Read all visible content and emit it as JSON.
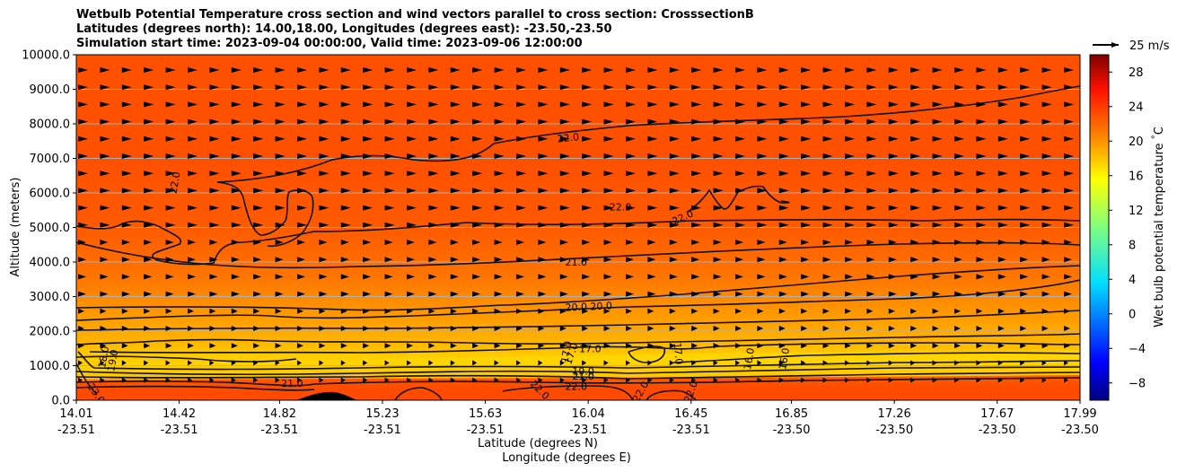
{
  "chart_data": {
    "type": "contour-cross-section",
    "title": [
      "Wetbulb Potential Temperature cross section and wind vectors parallel to cross section: CrosssectionB",
      "Latitudes (degrees north): 14.00,18.00, Longitudes (degrees east): -23.50,-23.50",
      "Simulation start time: 2023-09-04 00:00:00, Valid time: 2023-09-06 12:00:00"
    ],
    "xlabel": "Latitude (degrees N)",
    "xlabel2": "Longitude (degrees E)",
    "ylabel": "Altitude (meters)",
    "ylim": [
      0,
      10000
    ],
    "y_ticks": [
      "0.0",
      "1000.0",
      "2000.0",
      "3000.0",
      "4000.0",
      "5000.0",
      "6000.0",
      "7000.0",
      "8000.0",
      "9000.0",
      "10000.0"
    ],
    "x_ticks": [
      {
        "lat": "14.01",
        "lon": "-23.51"
      },
      {
        "lat": "14.42",
        "lon": "-23.51"
      },
      {
        "lat": "14.82",
        "lon": "-23.51"
      },
      {
        "lat": "15.23",
        "lon": "-23.51"
      },
      {
        "lat": "15.63",
        "lon": "-23.51"
      },
      {
        "lat": "16.04",
        "lon": "-23.51"
      },
      {
        "lat": "16.45",
        "lon": "-23.51"
      },
      {
        "lat": "16.85",
        "lon": "-23.50"
      },
      {
        "lat": "17.26",
        "lon": "-23.50"
      },
      {
        "lat": "17.67",
        "lon": "-23.50"
      },
      {
        "lat": "17.99",
        "lon": "-23.50"
      }
    ],
    "x_tick_fractions": [
      0,
      0.1025,
      0.2025,
      0.305,
      0.4075,
      0.51,
      0.6125,
      0.7125,
      0.815,
      0.9175,
      1.0
    ],
    "colorbar": {
      "label": "Wet bulb potential temperature $^\\circ$C",
      "range": [
        -10,
        30
      ],
      "tick_values": [
        -8,
        -4,
        0,
        4,
        8,
        12,
        16,
        20,
        24,
        28
      ],
      "tick_labels": [
        "−8",
        "−4",
        "0",
        "4",
        "8",
        "12",
        "16",
        "20",
        "24",
        "28"
      ],
      "colormap": [
        "#00007f",
        "#0000ff",
        "#007fff",
        "#00ffff",
        "#7fff7f",
        "#ffff00",
        "#ff7f00",
        "#ff0000",
        "#7f0000"
      ]
    },
    "wind_key_label": "25 m/s",
    "contour_labels": [
      {
        "text": "22.0",
        "x_frac": 0.098,
        "alt": 6300,
        "rot": -80
      },
      {
        "text": "22.0",
        "x_frac": 0.49,
        "alt": 7600,
        "rot": -6
      },
      {
        "text": "22.0",
        "x_frac": 0.542,
        "alt": 5600,
        "rot": 0
      },
      {
        "text": "22.0",
        "x_frac": 0.604,
        "alt": 5300,
        "rot": -25
      },
      {
        "text": "21.0",
        "x_frac": 0.498,
        "alt": 4000,
        "rot": 0
      },
      {
        "text": "20.0",
        "x_frac": 0.498,
        "alt": 2700,
        "rot": -3
      },
      {
        "text": "20.0",
        "x_frac": 0.523,
        "alt": 2730,
        "rot": -3
      },
      {
        "text": "17.0",
        "x_frac": 0.512,
        "alt": 1500,
        "rot": 0
      },
      {
        "text": "17.0",
        "x_frac": 0.488,
        "alt": 1400,
        "rot": -80
      },
      {
        "text": "17.0",
        "x_frac": 0.6,
        "alt": 1350,
        "rot": 85
      },
      {
        "text": "17.0",
        "x_frac": 0.493,
        "alt": 1350,
        "rot": -70
      },
      {
        "text": "19.0",
        "x_frac": 0.505,
        "alt": 850,
        "rot": 0
      },
      {
        "text": "21.0",
        "x_frac": 0.505,
        "alt": 700,
        "rot": 0
      },
      {
        "text": "22.0",
        "x_frac": 0.498,
        "alt": 400,
        "rot": 0
      },
      {
        "text": "22.0",
        "x_frac": 0.462,
        "alt": 300,
        "rot": 45
      },
      {
        "text": "22.0",
        "x_frac": 0.562,
        "alt": 250,
        "rot": -60
      },
      {
        "text": "22.0",
        "x_frac": 0.612,
        "alt": 250,
        "rot": -70
      },
      {
        "text": "21.0",
        "x_frac": 0.215,
        "alt": 500,
        "rot": 0
      },
      {
        "text": "23.0",
        "x_frac": 0.02,
        "alt": 200,
        "rot": 55
      },
      {
        "text": "18.0",
        "x_frac": 0.027,
        "alt": 1250,
        "rot": -80
      },
      {
        "text": "19.0",
        "x_frac": 0.036,
        "alt": 1150,
        "rot": -80
      },
      {
        "text": "16.0",
        "x_frac": 0.67,
        "alt": 1200,
        "rot": -80
      },
      {
        "text": "16.0",
        "x_frac": 0.705,
        "alt": 1200,
        "rot": -80
      }
    ]
  }
}
